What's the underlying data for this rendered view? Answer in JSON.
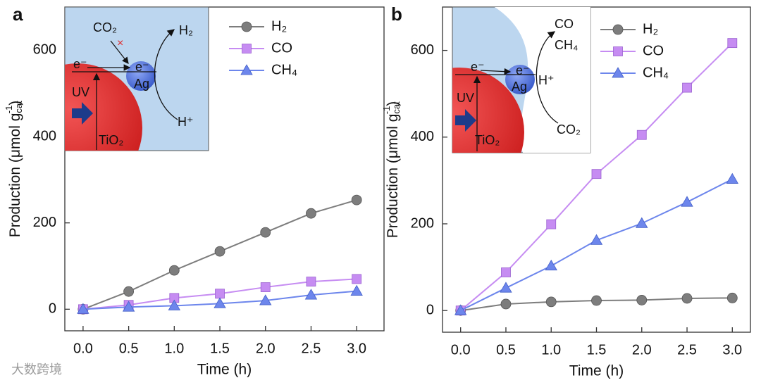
{
  "chart_data": [
    {
      "type": "line",
      "panel_label": "a",
      "xlabel": "Time (h)",
      "ylabel": {
        "text": "Production (μmol g",
        "sub": "cat",
        "sup": "-1",
        "close": ")"
      },
      "x": [
        0,
        0.5,
        1,
        1.5,
        2,
        2.5,
        3
      ],
      "xlim": [
        -0.2,
        3.3
      ],
      "ylim": [
        -50,
        700
      ],
      "xticks": [
        {
          "value": 0,
          "label": "0.0"
        },
        0.5,
        {
          "value": 1,
          "label": "1.0"
        },
        1.5,
        {
          "value": 2,
          "label": "2.0"
        },
        2.5,
        {
          "value": 3,
          "label": "3.0"
        }
      ],
      "yticks": [
        0,
        200,
        400,
        600
      ],
      "legend": "top-right",
      "series": [
        {
          "name": "H₂",
          "color": "#7d7d7d",
          "marker": "circle",
          "values": [
            0,
            41,
            90,
            134,
            178,
            222,
            253
          ]
        },
        {
          "name": "CO",
          "color": "#c68cf2",
          "marker": "square",
          "values": [
            0,
            10,
            26,
            36,
            51,
            64,
            70
          ]
        },
        {
          "name": "CH₄",
          "color": "#6d86ec",
          "marker": "triangle",
          "values": [
            0,
            5,
            8,
            13,
            20,
            33,
            42
          ]
        }
      ],
      "inset": {
        "co2": "CO₂",
        "blocked": "×",
        "h2": "H₂",
        "e1": "e⁻",
        "e2": "e⁻",
        "ag": "Ag",
        "uv": "UV",
        "tio2": "TiO₂",
        "hplus": "H⁺"
      }
    },
    {
      "type": "line",
      "panel_label": "b",
      "xlabel": "Time (h)",
      "ylabel": {
        "text": "Production (μmol g",
        "sub": "cat",
        "sup": "-1",
        "close": ")"
      },
      "x": [
        0,
        0.5,
        1,
        1.5,
        2,
        2.5,
        3
      ],
      "xlim": [
        -0.2,
        3.2
      ],
      "ylim": [
        -50,
        700
      ],
      "xticks": [
        {
          "value": 0,
          "label": "0.0"
        },
        0.5,
        {
          "value": 1,
          "label": "1.0"
        },
        1.5,
        {
          "value": 2,
          "label": "2.0"
        },
        2.5,
        {
          "value": 3,
          "label": "3.0"
        }
      ],
      "yticks": [
        0,
        200,
        400,
        600
      ],
      "legend": "top-right",
      "series": [
        {
          "name": "H₂",
          "color": "#7d7d7d",
          "marker": "circle",
          "values": [
            0,
            15,
            20,
            23,
            24,
            28,
            29
          ]
        },
        {
          "name": "CO",
          "color": "#c68cf2",
          "marker": "square",
          "values": [
            0,
            88,
            199,
            315,
            405,
            514,
            617
          ]
        },
        {
          "name": "CH₄",
          "color": "#6d86ec",
          "marker": "triangle",
          "values": [
            0,
            52,
            103,
            162,
            201,
            250,
            303
          ]
        }
      ],
      "inset": {
        "co": "CO",
        "ch4": "CH₄",
        "e1": "e⁻",
        "e2": "e⁻",
        "ag": "Ag",
        "hplus": "H⁺",
        "uv": "UV",
        "tio2": "TiO₂",
        "co2": "CO₂"
      }
    }
  ],
  "watermark": "大数跨境"
}
